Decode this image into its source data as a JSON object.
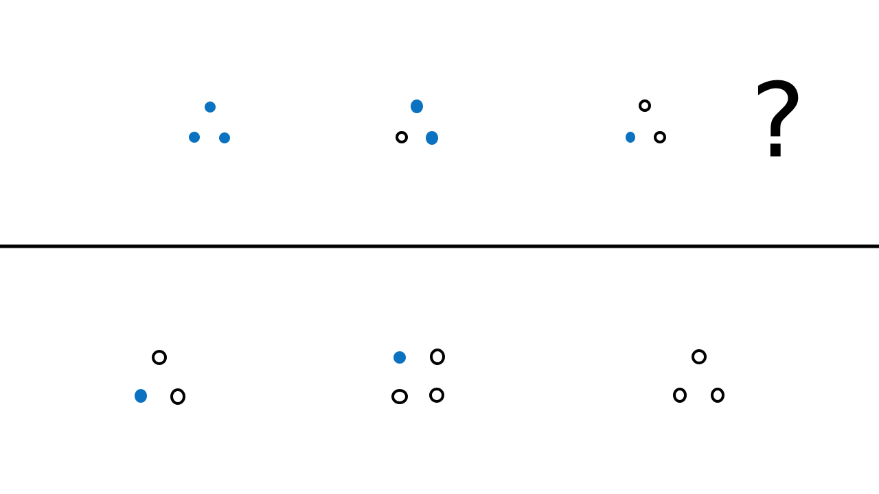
{
  "colors": {
    "filled": "#0a72c0",
    "hollow_stroke": "#000000",
    "divider": "#000000",
    "background": "#ffffff"
  },
  "question": {
    "label": "?"
  },
  "sequence": [
    {
      "dots": [
        "filled",
        "filled",
        "filled"
      ]
    },
    {
      "dots": [
        "filled",
        "hollow",
        "filled"
      ]
    },
    {
      "dots": [
        "hollow",
        "filled",
        "hollow"
      ]
    }
  ],
  "options": [
    {
      "dots": [
        "hollow",
        "filled",
        "hollow"
      ]
    },
    {
      "dots": [
        "filled",
        "hollow",
        "hollow",
        "hollow"
      ]
    },
    {
      "dots": [
        "hollow",
        "hollow",
        "hollow"
      ]
    }
  ]
}
